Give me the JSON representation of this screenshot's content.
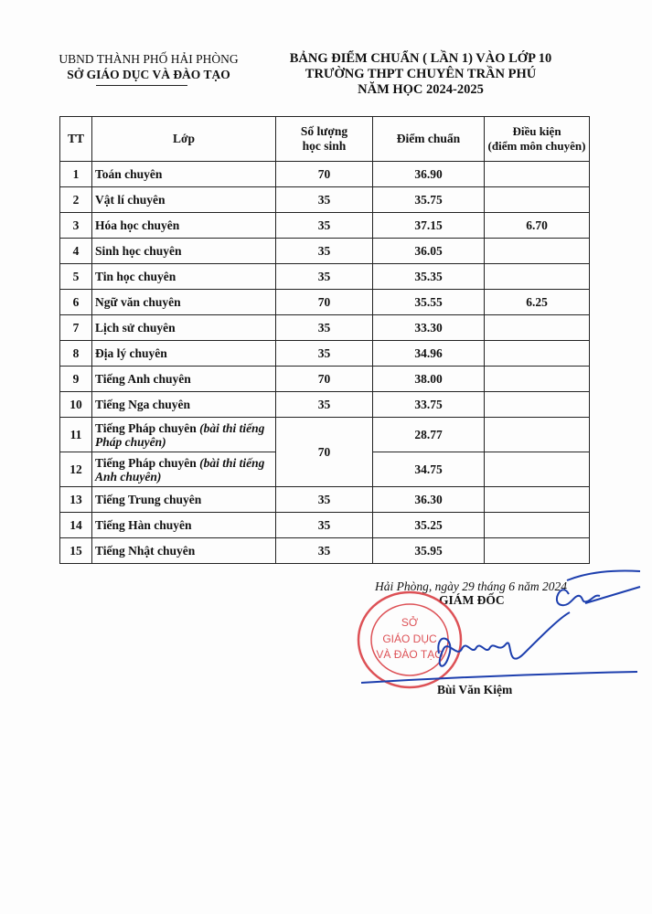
{
  "header": {
    "left_line1": "UBND THÀNH PHỐ HẢI PHÒNG",
    "left_line2": "SỞ GIÁO DỤC VÀ ĐÀO TẠO",
    "title_line1": "BẢNG ĐIỂM CHUẨN ( LẦN 1) VÀO LỚP 10",
    "title_line2": "TRƯỜNG THPT CHUYÊN TRẦN PHÚ",
    "title_line3": "NĂM HỌC 2024-2025"
  },
  "table": {
    "columns": [
      "TT",
      "Lớp",
      "Số lượng học sinh",
      "Điểm chuẩn",
      "Điều kiện (điểm môn chuyên)"
    ],
    "col_lines": {
      "qty1": "Số lượng",
      "qty2": "học sinh",
      "cond1": "Điều kiện",
      "cond2": "(điểm môn chuyên)"
    },
    "rows": [
      {
        "tt": "1",
        "lop": "Toán chuyên",
        "sl": "70",
        "diem": "36.90",
        "dk": ""
      },
      {
        "tt": "2",
        "lop": "Vật lí chuyên",
        "sl": "35",
        "diem": "35.75",
        "dk": ""
      },
      {
        "tt": "3",
        "lop": "Hóa học chuyên",
        "sl": "35",
        "diem": "37.15",
        "dk": "6.70"
      },
      {
        "tt": "4",
        "lop": "Sinh học chuyên",
        "sl": "35",
        "diem": "36.05",
        "dk": ""
      },
      {
        "tt": "5",
        "lop": "Tin học chuyên",
        "sl": "35",
        "diem": "35.35",
        "dk": ""
      },
      {
        "tt": "6",
        "lop": "Ngữ văn chuyên",
        "sl": "70",
        "diem": "35.55",
        "dk": "6.25"
      },
      {
        "tt": "7",
        "lop": "Lịch sử chuyên",
        "sl": "35",
        "diem": "33.30",
        "dk": ""
      },
      {
        "tt": "8",
        "lop": "Địa lý chuyên",
        "sl": "35",
        "diem": "34.96",
        "dk": ""
      },
      {
        "tt": "9",
        "lop": "Tiếng Anh chuyên",
        "sl": "70",
        "diem": "38.00",
        "dk": ""
      },
      {
        "tt": "10",
        "lop": "Tiếng Nga chuyên",
        "sl": "35",
        "diem": "33.75",
        "dk": ""
      },
      {
        "tt": "11",
        "lop": "Tiếng Pháp chuyên",
        "note": "(bài thi tiếng Pháp chuyên)",
        "sl": "70",
        "diem": "28.77",
        "dk": ""
      },
      {
        "tt": "12",
        "lop": "Tiếng Pháp chuyên",
        "note": "(bài thi tiếng Anh chuyên)",
        "sl": "70",
        "diem": "34.75",
        "dk": ""
      },
      {
        "tt": "13",
        "lop": "Tiếng Trung chuyên",
        "sl": "35",
        "diem": "36.30",
        "dk": ""
      },
      {
        "tt": "14",
        "lop": "Tiếng Hàn chuyên",
        "sl": "35",
        "diem": "35.25",
        "dk": ""
      },
      {
        "tt": "15",
        "lop": "Tiếng Nhật chuyên",
        "sl": "35",
        "diem": "35.95",
        "dk": ""
      }
    ]
  },
  "footer": {
    "date": "Hải Phòng, ngày 29 tháng 6 năm 2024",
    "position": "GIÁM ĐỐC",
    "signer": "Bùi Văn Kiệm"
  },
  "stamp": {
    "text": "SỞ GIÁO DỤC VÀ ĐÀO TẠO",
    "ring": "CỘNG HÒA XÃ HỘI CHỦ NGHĨA VIỆT NAM - TP HẢI PHÒNG",
    "color": "#d8343a"
  },
  "signature_color": "#1d3fae"
}
